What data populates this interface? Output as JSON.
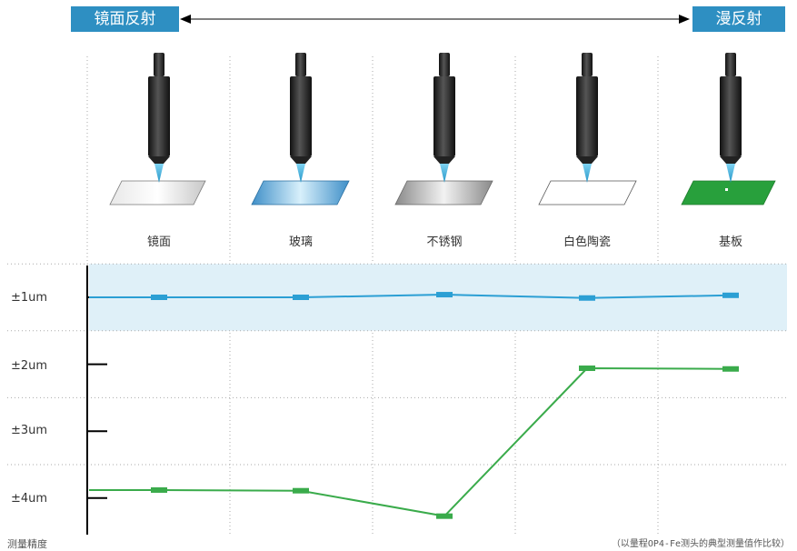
{
  "header": {
    "left_label": "镜面反射",
    "right_label": "漫反射"
  },
  "materials": [
    "镜面",
    "玻璃",
    "不锈钢",
    "白色陶瓷",
    "基板"
  ],
  "colors": {
    "accent": "#2e8fc2",
    "series_blue": "#2b9fd4",
    "series_green": "#3aab4b",
    "band": "#dff0f8",
    "grid": "#aaaaaa"
  },
  "icons": [
    "laser-probe-icon"
  ],
  "chart_data": {
    "type": "line",
    "categories": [
      "镜面",
      "玻璃",
      "不锈钢",
      "白色陶瓷",
      "基板"
    ],
    "yticks": [
      "±1um",
      "±2um",
      "±3um",
      "±4um"
    ],
    "yrange": [
      1,
      4.3
    ],
    "ylabel": "测量精度",
    "note": "（以量程OP4-Fe测头的典型测量值作比较）",
    "highlight_band": [
      0.5,
      1.5
    ],
    "series": [
      {
        "color": "#2b9fd4",
        "values": [
          1.0,
          1.0,
          0.96,
          1.01,
          0.97
        ]
      },
      {
        "color": "#3aab4b",
        "values": [
          3.88,
          3.89,
          4.27,
          2.06,
          2.07
        ]
      }
    ]
  }
}
